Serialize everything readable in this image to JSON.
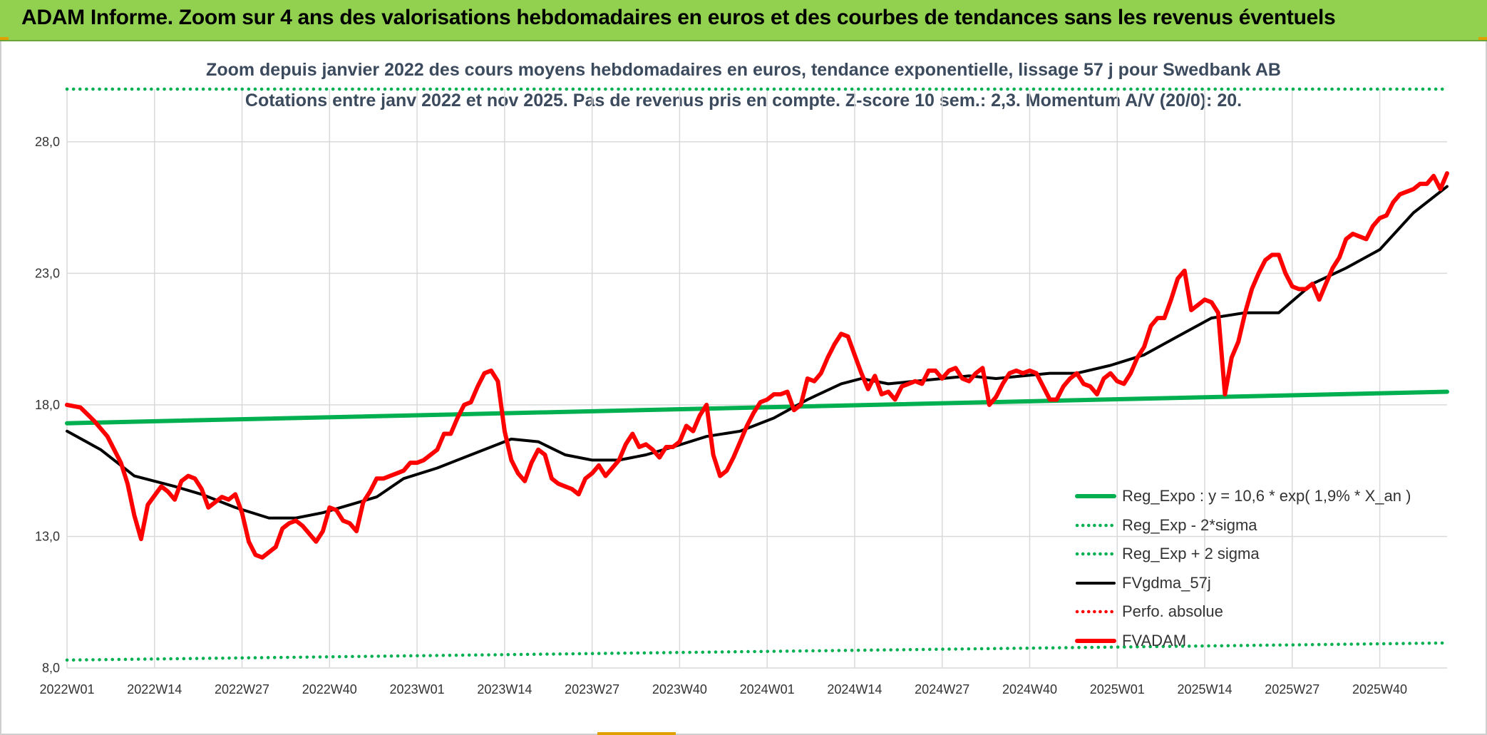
{
  "header": {
    "title": "ADAM Informe. Zoom sur 4 ans des valorisations hebdomadaires en euros et des courbes de tendances sans les revenus éventuels"
  },
  "chart_data": {
    "type": "line",
    "title": "Zoom depuis janvier 2022 des cours moyens hebdomadaires en euros, tendance exponentielle, lissage 57 j pour Swedbank AB",
    "subtitle": "Cotations entre janv 2022 et nov 2025. Pas de revenus pris en compte. Z-score 10 sem.: 2,3. Momentum A/V (20/0): 20.",
    "xlabel": "",
    "ylabel": "",
    "ylim": [
      8.0,
      30.0
    ],
    "y_ticks": [
      "8,0",
      "13,0",
      "18,0",
      "23,0",
      "28,0"
    ],
    "x_ticks": [
      "2022W01",
      "2022W14",
      "2022W27",
      "2022W40",
      "2023W01",
      "2023W14",
      "2023W27",
      "2023W40",
      "2024W01",
      "2024W14",
      "2024W27",
      "2024W40",
      "2025W01",
      "2025W14",
      "2025W27",
      "2025W40"
    ],
    "x_range": [
      0,
      205
    ],
    "grid": true,
    "legend_placement": "bottom-right",
    "series": [
      {
        "name": "Reg_Expo : y = 10,6 * exp( 1,9% *  X_an )",
        "color": "#00b050",
        "style": "solid-thick",
        "x": [
          0,
          205
        ],
        "values": [
          17.3,
          18.5
        ]
      },
      {
        "name": "Reg_Exp - 2*sigma",
        "color": "#00b050",
        "style": "dotted",
        "x": [
          0,
          205
        ],
        "values": [
          8.3,
          8.95
        ]
      },
      {
        "name": "Reg_Exp + 2 sigma",
        "color": "#00b050",
        "style": "dotted",
        "x": [
          0,
          205
        ],
        "values": [
          30.0,
          30.0
        ]
      },
      {
        "name": "FVgdma_57j",
        "color": "#000000",
        "style": "solid",
        "x": [
          0,
          5,
          10,
          13,
          16,
          20,
          25,
          30,
          34,
          38,
          42,
          46,
          50,
          55,
          60,
          66,
          70,
          74,
          78,
          82,
          86,
          90,
          95,
          100,
          105,
          110,
          115,
          118,
          122,
          126,
          130,
          134,
          138,
          142,
          146,
          150,
          155,
          160,
          165,
          170,
          175,
          180,
          185,
          190,
          195,
          200,
          205
        ],
        "values": [
          17.0,
          16.3,
          15.3,
          15.1,
          14.9,
          14.6,
          14.1,
          13.7,
          13.7,
          13.9,
          14.2,
          14.5,
          15.2,
          15.6,
          16.1,
          16.7,
          16.6,
          16.1,
          15.9,
          15.9,
          16.1,
          16.4,
          16.8,
          17.0,
          17.5,
          18.2,
          18.8,
          19.0,
          18.8,
          18.9,
          19.0,
          19.1,
          19.0,
          19.1,
          19.2,
          19.2,
          19.5,
          19.9,
          20.6,
          21.3,
          21.5,
          21.5,
          22.6,
          23.2,
          23.9,
          25.3,
          26.3
        ]
      },
      {
        "name": "Perfo. absolue",
        "color": "#ff0000",
        "style": "dotted",
        "x": [],
        "values": []
      },
      {
        "name": "FVADAM",
        "color": "#ff0000",
        "style": "solid-thick",
        "x": [
          0,
          2,
          4,
          6,
          8,
          9,
          10,
          11,
          12,
          14,
          15,
          16,
          17,
          18,
          19,
          20,
          21,
          22,
          23,
          24,
          25,
          26,
          27,
          28,
          29,
          30,
          31,
          32,
          33,
          34,
          35,
          36,
          37,
          38,
          39,
          40,
          41,
          42,
          43,
          44,
          45,
          46,
          47,
          48,
          49,
          50,
          51,
          52,
          53,
          54,
          55,
          56,
          57,
          58,
          59,
          60,
          61,
          62,
          63,
          64,
          65,
          66,
          67,
          68,
          69,
          70,
          71,
          72,
          73,
          74,
          75,
          76,
          77,
          78,
          79,
          80,
          81,
          82,
          83,
          84,
          85,
          86,
          87,
          88,
          89,
          90,
          91,
          92,
          93,
          94,
          95,
          96,
          97,
          98,
          99,
          100,
          101,
          102,
          103,
          104,
          105,
          106,
          107,
          108,
          109,
          110,
          111,
          112,
          113,
          114,
          115,
          116,
          117,
          118,
          119,
          120,
          121,
          122,
          123,
          124,
          125,
          126,
          127,
          128,
          129,
          130,
          131,
          132,
          133,
          134,
          135,
          136,
          137,
          138,
          139,
          140,
          141,
          142,
          143,
          144,
          145,
          146,
          147,
          148,
          149,
          150,
          151,
          152,
          153,
          154,
          155,
          156,
          157,
          158,
          159,
          160,
          161,
          162,
          163,
          164,
          165,
          166,
          167,
          168,
          169,
          170,
          171,
          172,
          173,
          174,
          175,
          176,
          177,
          178,
          179,
          180,
          181,
          182,
          183,
          184,
          185,
          186,
          187,
          188,
          189,
          190,
          191,
          192,
          193,
          194,
          195,
          196,
          197,
          198,
          199,
          200,
          201,
          202,
          203,
          204,
          205
        ],
        "values": [
          18.0,
          17.9,
          17.4,
          16.8,
          15.8,
          15.0,
          13.8,
          12.9,
          14.2,
          14.9,
          14.7,
          14.4,
          15.1,
          15.3,
          15.2,
          14.8,
          14.1,
          14.3,
          14.5,
          14.4,
          14.6,
          13.9,
          12.8,
          12.3,
          12.2,
          12.4,
          12.6,
          13.3,
          13.5,
          13.6,
          13.4,
          13.1,
          12.8,
          13.2,
          14.1,
          14.0,
          13.6,
          13.5,
          13.2,
          14.3,
          14.7,
          15.2,
          15.2,
          15.3,
          15.4,
          15.5,
          15.8,
          15.8,
          15.9,
          16.1,
          16.3,
          16.9,
          16.9,
          17.5,
          18.0,
          18.1,
          18.7,
          19.2,
          19.3,
          18.9,
          17.0,
          15.9,
          15.4,
          15.1,
          15.8,
          16.3,
          16.1,
          15.2,
          15.0,
          14.9,
          14.8,
          14.6,
          15.2,
          15.4,
          15.7,
          15.3,
          15.6,
          15.9,
          16.5,
          16.9,
          16.4,
          16.5,
          16.3,
          16.0,
          16.4,
          16.4,
          16.6,
          17.2,
          17.0,
          17.6,
          18.0,
          16.1,
          15.3,
          15.5,
          16.0,
          16.6,
          17.2,
          17.7,
          18.1,
          18.2,
          18.4,
          18.4,
          18.5,
          17.8,
          18.0,
          19.0,
          18.9,
          19.2,
          19.8,
          20.3,
          20.7,
          20.6,
          19.9,
          19.2,
          18.6,
          19.1,
          18.4,
          18.5,
          18.2,
          18.7,
          18.8,
          18.9,
          18.8,
          19.3,
          19.3,
          19.0,
          19.3,
          19.4,
          19.0,
          18.9,
          19.2,
          19.4,
          18.0,
          18.3,
          18.8,
          19.2,
          19.3,
          19.2,
          19.3,
          19.2,
          18.7,
          18.2,
          18.2,
          18.7,
          19.0,
          19.2,
          18.8,
          18.7,
          18.4,
          19.0,
          19.2,
          18.9,
          18.8,
          19.2,
          19.8,
          20.2,
          21.0,
          21.3,
          21.3,
          22.0,
          22.8,
          23.1,
          21.6,
          21.8,
          22.0,
          21.9,
          21.5,
          18.4,
          19.8,
          20.4,
          21.5,
          22.4,
          23.0,
          23.5,
          23.7,
          23.7,
          23.0,
          22.5,
          22.4,
          22.4,
          22.6,
          22.0,
          22.6,
          23.2,
          23.6,
          24.3,
          24.5,
          24.4,
          24.3,
          24.8,
          25.1,
          25.2,
          25.7,
          26.0,
          26.1,
          26.2,
          26.4,
          26.4,
          26.7,
          26.2,
          26.8
        ]
      }
    ]
  }
}
